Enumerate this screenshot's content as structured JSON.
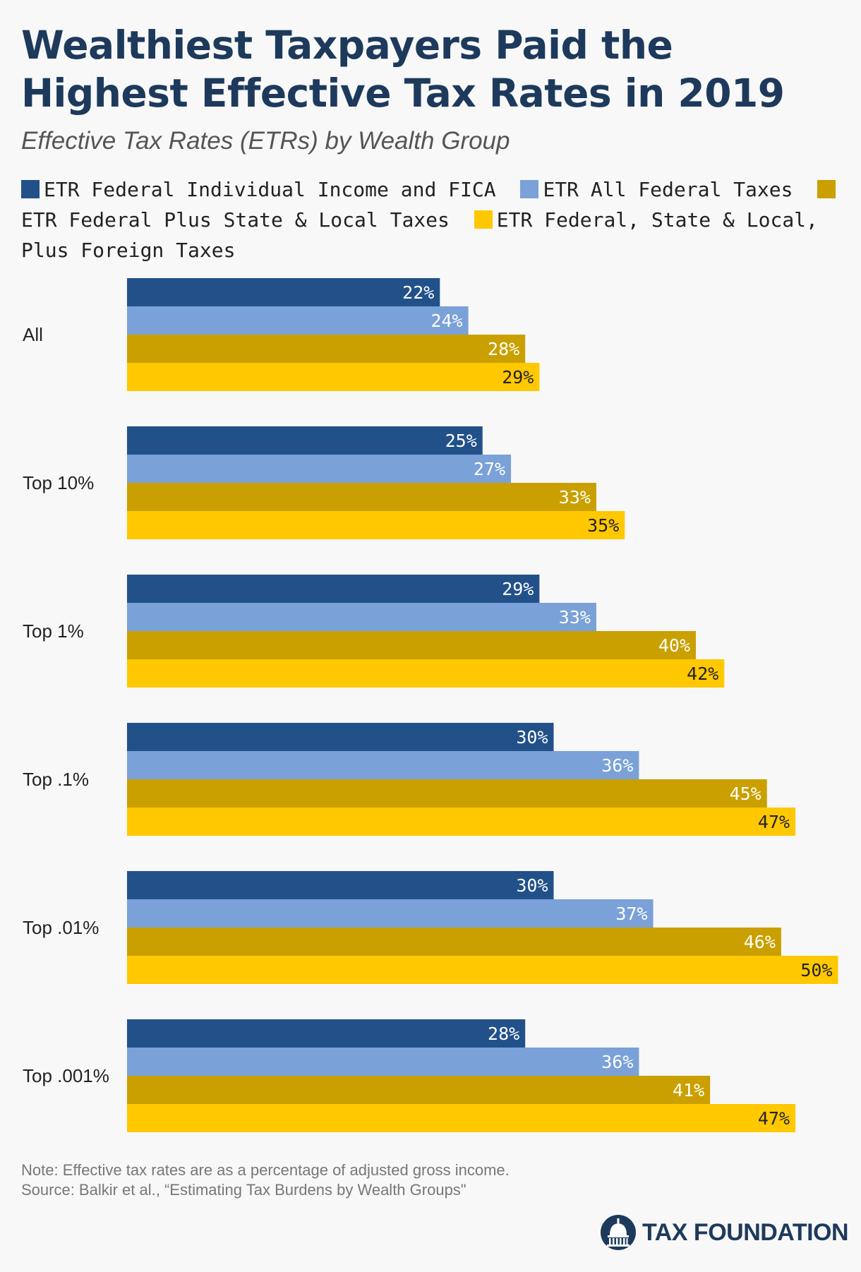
{
  "header": {
    "title": "Wealthiest Taxpayers Paid the Highest Effective Tax Rates in 2019",
    "subtitle": "Effective Tax Rates (ETRs) by Wealth Group"
  },
  "footer": {
    "note": "Note: Effective tax rates are as a percentage of adjusted gross income.",
    "source": "Source: Balkir et al., “Estimating Tax Burdens by Wealth Groups\"",
    "brand": "TAX FOUNDATION",
    "brand_icon": "capitol-dome-icon"
  },
  "colors": {
    "dark_blue": "#22518a",
    "light_blue": "#7aa1d8",
    "gold": "#c9a000",
    "yellow": "#ffc800",
    "title": "#1d3a5c"
  },
  "chart_data": {
    "type": "bar",
    "orientation": "horizontal",
    "categories": [
      "All",
      "Top 10%",
      "Top 1%",
      "Top .1%",
      "Top .01%",
      "Top .001%"
    ],
    "series": [
      {
        "name": "ETR Federal Individual Income and FICA",
        "color": "#22518a",
        "label_color": "#ffffff",
        "values": [
          22,
          25,
          29,
          30,
          30,
          28
        ]
      },
      {
        "name": "ETR All Federal Taxes",
        "color": "#7aa1d8",
        "label_color": "#ffffff",
        "values": [
          24,
          27,
          33,
          36,
          37,
          36
        ]
      },
      {
        "name": "ETR Federal Plus State & Local Taxes",
        "color": "#c9a000",
        "label_color": "#ffffff",
        "values": [
          28,
          33,
          40,
          45,
          46,
          41
        ]
      },
      {
        "name": "ETR Federal, State & Local, Plus Foreign Taxes",
        "color": "#ffc800",
        "label_color": "#222222",
        "values": [
          29,
          35,
          42,
          47,
          50,
          47
        ]
      }
    ],
    "value_suffix": "%",
    "xlim": [
      0,
      50
    ],
    "grid": false,
    "legend_position": "top"
  }
}
